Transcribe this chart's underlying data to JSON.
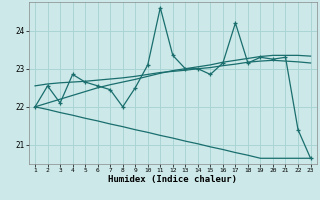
{
  "xlabel": "Humidex (Indice chaleur)",
  "bg_color": "#cce8e8",
  "grid_color": "#aad4d4",
  "line_color": "#1a6e6e",
  "xlim": [
    0.5,
    23.5
  ],
  "ylim": [
    20.5,
    24.75
  ],
  "yticks": [
    21,
    22,
    23,
    24
  ],
  "xticks": [
    1,
    2,
    3,
    4,
    5,
    6,
    7,
    8,
    9,
    10,
    11,
    12,
    13,
    14,
    15,
    16,
    17,
    18,
    19,
    20,
    21,
    22,
    23
  ],
  "x": [
    1,
    2,
    3,
    4,
    5,
    6,
    7,
    8,
    9,
    10,
    11,
    12,
    13,
    14,
    15,
    16,
    17,
    18,
    19,
    20,
    21,
    22,
    23
  ],
  "y_main": [
    22.0,
    22.55,
    22.1,
    22.85,
    22.65,
    22.55,
    22.45,
    22.0,
    22.5,
    23.1,
    24.6,
    23.35,
    23.0,
    23.0,
    22.85,
    23.15,
    24.2,
    23.15,
    23.3,
    23.25,
    23.3,
    21.4,
    20.65
  ],
  "y_trend_up": [
    22.0,
    22.1,
    22.2,
    22.3,
    22.4,
    22.5,
    22.58,
    22.65,
    22.72,
    22.8,
    22.88,
    22.95,
    23.0,
    23.05,
    23.1,
    23.17,
    23.22,
    23.27,
    23.32,
    23.35,
    23.35,
    23.35,
    23.33
  ],
  "y_trend_down": [
    22.0,
    21.93,
    21.85,
    21.78,
    21.7,
    21.63,
    21.55,
    21.48,
    21.4,
    21.33,
    21.25,
    21.18,
    21.1,
    21.03,
    20.95,
    20.88,
    20.8,
    20.73,
    20.65,
    20.65,
    20.65,
    20.65,
    20.65
  ],
  "y_smooth": [
    22.55,
    22.6,
    22.63,
    22.65,
    22.67,
    22.7,
    22.73,
    22.76,
    22.8,
    22.85,
    22.9,
    22.93,
    22.96,
    23.0,
    23.03,
    23.08,
    23.12,
    23.17,
    23.2,
    23.22,
    23.2,
    23.18,
    23.15
  ]
}
